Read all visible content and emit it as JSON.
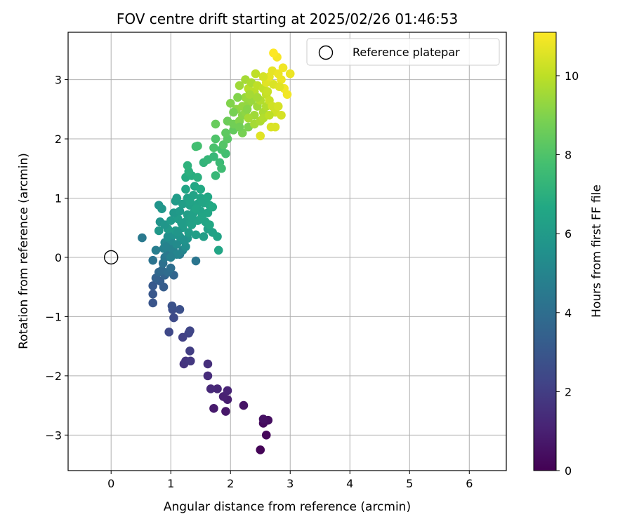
{
  "chart_data": {
    "type": "scatter",
    "title": "FOV centre drift starting at 2025/02/26 01:46:53",
    "xlabel": "Angular distance from reference (arcmin)",
    "ylabel": "Rotation from reference (arcmin)",
    "xlim": [
      -0.72,
      6.62
    ],
    "ylim": [
      -3.6,
      3.8
    ],
    "xticks": [
      "0",
      "1",
      "2",
      "3",
      "4",
      "5",
      "6"
    ],
    "yticks": [
      "−3",
      "−2",
      "−1",
      "0",
      "1",
      "2",
      "3"
    ],
    "grid": true,
    "legend": {
      "placement": "top-right",
      "entries": [
        "Reference platepar"
      ]
    },
    "reference_point": {
      "x": 0,
      "y": 0
    },
    "colorbar": {
      "label": "Hours from first FF file",
      "range": [
        0,
        11.1
      ],
      "ticks": [
        "0",
        "2",
        "4",
        "6",
        "8",
        "10"
      ],
      "colormap": "viridis"
    },
    "points": [
      [
        2.5,
        -3.25,
        0.1
      ],
      [
        2.6,
        -3.0,
        0.2
      ],
      [
        2.55,
        -2.8,
        0.3
      ],
      [
        2.63,
        -2.75,
        0.4
      ],
      [
        2.55,
        -2.73,
        0.5
      ],
      [
        2.22,
        -2.5,
        0.6
      ],
      [
        1.92,
        -2.6,
        0.7
      ],
      [
        1.72,
        -2.55,
        0.8
      ],
      [
        1.95,
        -2.4,
        0.9
      ],
      [
        1.88,
        -2.35,
        1.0
      ],
      [
        1.95,
        -2.25,
        1.1
      ],
      [
        1.78,
        -2.22,
        1.2
      ],
      [
        1.67,
        -2.22,
        1.3
      ],
      [
        1.62,
        -2.0,
        1.4
      ],
      [
        1.62,
        -1.8,
        1.5
      ],
      [
        1.22,
        -1.8,
        1.6
      ],
      [
        1.25,
        -1.75,
        1.7
      ],
      [
        1.33,
        -1.75,
        1.8
      ],
      [
        1.32,
        -1.58,
        2.0
      ],
      [
        1.2,
        -1.35,
        2.1
      ],
      [
        1.3,
        -1.28,
        2.2
      ],
      [
        1.32,
        -1.24,
        2.3
      ],
      [
        0.97,
        -1.26,
        2.4
      ],
      [
        1.05,
        -1.02,
        2.5
      ],
      [
        1.03,
        -0.88,
        2.6
      ],
      [
        1.15,
        -0.88,
        2.7
      ],
      [
        1.02,
        -0.82,
        2.8
      ],
      [
        0.7,
        -0.77,
        2.9
      ],
      [
        0.7,
        -0.62,
        3.0
      ],
      [
        0.7,
        -0.48,
        3.1
      ],
      [
        0.88,
        -0.5,
        3.2
      ],
      [
        0.82,
        -0.4,
        3.3
      ],
      [
        0.75,
        -0.35,
        3.4
      ],
      [
        0.9,
        -0.3,
        3.5
      ],
      [
        1.05,
        -0.3,
        3.6
      ],
      [
        0.8,
        -0.25,
        3.7
      ],
      [
        0.85,
        -0.22,
        3.8
      ],
      [
        0.95,
        -0.25,
        3.9
      ],
      [
        1.0,
        -0.18,
        4.0
      ],
      [
        0.87,
        -0.1,
        4.1
      ],
      [
        0.7,
        -0.05,
        4.2
      ],
      [
        1.42,
        -0.06,
        4.3
      ],
      [
        0.9,
        0.0,
        4.4
      ],
      [
        0.95,
        0.05,
        4.5
      ],
      [
        1.05,
        0.1,
        4.6
      ],
      [
        0.75,
        0.12,
        4.7
      ],
      [
        0.88,
        0.15,
        4.8
      ],
      [
        1.02,
        0.15,
        4.9
      ],
      [
        1.15,
        0.05,
        4.6
      ],
      [
        1.2,
        0.12,
        5.0
      ],
      [
        0.52,
        0.33,
        4.5
      ],
      [
        0.9,
        0.25,
        5.1
      ],
      [
        1.0,
        0.28,
        5.2
      ],
      [
        1.1,
        0.22,
        5.3
      ],
      [
        1.25,
        0.18,
        5.4
      ],
      [
        0.95,
        0.35,
        5.5
      ],
      [
        1.05,
        0.38,
        5.6
      ],
      [
        1.15,
        0.35,
        5.7
      ],
      [
        1.28,
        0.32,
        5.8
      ],
      [
        0.8,
        0.45,
        5.9
      ],
      [
        0.95,
        0.48,
        6.0
      ],
      [
        1.08,
        0.45,
        6.0
      ],
      [
        1.2,
        0.5,
        6.1
      ],
      [
        1.3,
        0.42,
        6.1
      ],
      [
        1.42,
        0.38,
        6.2
      ],
      [
        1.55,
        0.35,
        6.2
      ],
      [
        1.62,
        0.48,
        6.3
      ],
      [
        1.7,
        0.42,
        6.3
      ],
      [
        1.78,
        0.35,
        6.4
      ],
      [
        1.8,
        0.12,
        6.5
      ],
      [
        0.82,
        0.6,
        5.7
      ],
      [
        0.9,
        0.55,
        5.8
      ],
      [
        1.0,
        0.62,
        6.0
      ],
      [
        1.12,
        0.65,
        6.1
      ],
      [
        1.25,
        0.6,
        6.2
      ],
      [
        1.35,
        0.55,
        6.3
      ],
      [
        1.45,
        0.62,
        6.4
      ],
      [
        1.58,
        0.6,
        6.5
      ],
      [
        1.65,
        0.55,
        6.6
      ],
      [
        1.05,
        0.75,
        5.9
      ],
      [
        1.15,
        0.78,
        6.0
      ],
      [
        1.28,
        0.72,
        6.2
      ],
      [
        1.38,
        0.75,
        6.3
      ],
      [
        1.5,
        0.78,
        6.4
      ],
      [
        1.62,
        0.75,
        6.5
      ],
      [
        0.8,
        0.88,
        5.7
      ],
      [
        0.85,
        0.82,
        5.8
      ],
      [
        1.2,
        0.9,
        6.2
      ],
      [
        1.32,
        0.88,
        6.3
      ],
      [
        1.45,
        0.9,
        6.4
      ],
      [
        1.55,
        0.92,
        6.5
      ],
      [
        1.65,
        0.88,
        6.6
      ],
      [
        1.7,
        0.85,
        6.7
      ],
      [
        1.08,
        0.95,
        6.0
      ],
      [
        1.1,
        1.0,
        6.1
      ],
      [
        1.28,
        1.0,
        6.3
      ],
      [
        1.38,
        1.05,
        6.4
      ],
      [
        1.5,
        1.0,
        6.5
      ],
      [
        1.62,
        1.02,
        6.6
      ],
      [
        1.25,
        1.15,
        6.5
      ],
      [
        1.4,
        1.2,
        6.6
      ],
      [
        1.5,
        1.15,
        6.7
      ],
      [
        1.25,
        1.35,
        6.8
      ],
      [
        1.35,
        1.38,
        6.9
      ],
      [
        1.45,
        1.35,
        7.0
      ],
      [
        1.3,
        1.45,
        7.0
      ],
      [
        1.28,
        1.55,
        7.1
      ],
      [
        1.55,
        1.6,
        7.2
      ],
      [
        1.62,
        1.65,
        7.3
      ],
      [
        1.72,
        1.7,
        7.4
      ],
      [
        1.75,
        1.38,
        7.4
      ],
      [
        1.82,
        1.6,
        7.5
      ],
      [
        1.85,
        1.5,
        7.6
      ],
      [
        1.92,
        1.75,
        7.7
      ],
      [
        1.85,
        1.82,
        7.8
      ],
      [
        1.72,
        1.85,
        7.9
      ],
      [
        1.45,
        1.88,
        7.8
      ],
      [
        1.42,
        1.87,
        7.7
      ],
      [
        1.75,
        2.0,
        8.0
      ],
      [
        1.88,
        1.9,
        8.1
      ],
      [
        1.95,
        2.0,
        8.2
      ],
      [
        1.92,
        2.1,
        8.3
      ],
      [
        2.05,
        2.15,
        8.4
      ],
      [
        1.75,
        2.25,
        8.5
      ],
      [
        1.95,
        2.3,
        8.6
      ],
      [
        2.05,
        2.25,
        8.7
      ],
      [
        2.2,
        2.1,
        8.8
      ],
      [
        2.3,
        2.2,
        8.9
      ],
      [
        2.15,
        2.3,
        9.0
      ],
      [
        2.2,
        2.4,
        9.1
      ],
      [
        2.1,
        2.5,
        9.2
      ],
      [
        2.25,
        2.45,
        9.2
      ],
      [
        2.3,
        2.6,
        9.3
      ],
      [
        2.2,
        2.55,
        9.3
      ],
      [
        2.25,
        2.7,
        9.4
      ],
      [
        2.35,
        2.65,
        9.4
      ],
      [
        2.45,
        2.55,
        9.5
      ],
      [
        2.4,
        2.4,
        9.5
      ],
      [
        2.3,
        2.35,
        9.6
      ],
      [
        2.4,
        2.25,
        9.6
      ],
      [
        2.5,
        2.3,
        9.7
      ],
      [
        2.55,
        2.45,
        9.7
      ],
      [
        2.6,
        2.55,
        9.8
      ],
      [
        2.5,
        2.65,
        9.8
      ],
      [
        2.4,
        2.8,
        9.9
      ],
      [
        2.3,
        2.85,
        9.9
      ],
      [
        2.15,
        2.9,
        9.5
      ],
      [
        2.25,
        3.0,
        9.6
      ],
      [
        2.35,
        2.95,
        9.7
      ],
      [
        2.45,
        2.9,
        10.0
      ],
      [
        2.55,
        2.85,
        10.1
      ],
      [
        2.6,
        2.75,
        10.1
      ],
      [
        2.65,
        2.65,
        10.2
      ],
      [
        2.7,
        2.55,
        10.3
      ],
      [
        2.75,
        2.45,
        10.3
      ],
      [
        2.8,
        2.55,
        10.4
      ],
      [
        2.85,
        2.4,
        10.4
      ],
      [
        2.75,
        2.2,
        10.5
      ],
      [
        2.68,
        2.2,
        10.5
      ],
      [
        2.5,
        2.05,
        10.6
      ],
      [
        2.6,
        2.95,
        10.6
      ],
      [
        2.65,
        3.05,
        10.7
      ],
      [
        2.7,
        3.15,
        10.7
      ],
      [
        2.8,
        3.1,
        10.8
      ],
      [
        2.85,
        3.0,
        10.8
      ],
      [
        2.9,
        2.85,
        10.9
      ],
      [
        2.95,
        2.75,
        10.9
      ],
      [
        3.0,
        3.1,
        10.8
      ],
      [
        2.78,
        3.38,
        11.0
      ],
      [
        2.72,
        3.45,
        11.1
      ],
      [
        2.55,
        3.05,
        10.4
      ],
      [
        2.62,
        2.8,
        10.2
      ],
      [
        2.42,
        3.1,
        10.0
      ],
      [
        2.32,
        2.75,
        9.6
      ],
      [
        2.12,
        2.7,
        9.0
      ],
      [
        2.05,
        2.45,
        8.8
      ],
      [
        2.0,
        2.6,
        9.0
      ],
      [
        2.15,
        2.2,
        8.7
      ],
      [
        2.28,
        2.5,
        9.1
      ],
      [
        2.45,
        2.7,
        9.6
      ],
      [
        2.55,
        2.35,
        9.8
      ],
      [
        2.65,
        2.4,
        10.0
      ],
      [
        2.72,
        2.92,
        10.5
      ],
      [
        2.82,
        2.88,
        10.6
      ],
      [
        2.88,
        3.2,
        10.9
      ],
      [
        1.32,
        0.95,
        6.4
      ],
      [
        1.42,
        0.82,
        6.5
      ],
      [
        1.52,
        0.68,
        6.5
      ],
      [
        1.35,
        0.68,
        6.3
      ],
      [
        1.18,
        0.58,
        6.1
      ],
      [
        1.12,
        0.42,
        5.8
      ],
      [
        1.22,
        0.28,
        5.6
      ],
      [
        1.1,
        0.05,
        5.0
      ],
      [
        1.0,
        0.0,
        4.8
      ],
      [
        0.92,
        0.18,
        4.9
      ]
    ]
  }
}
